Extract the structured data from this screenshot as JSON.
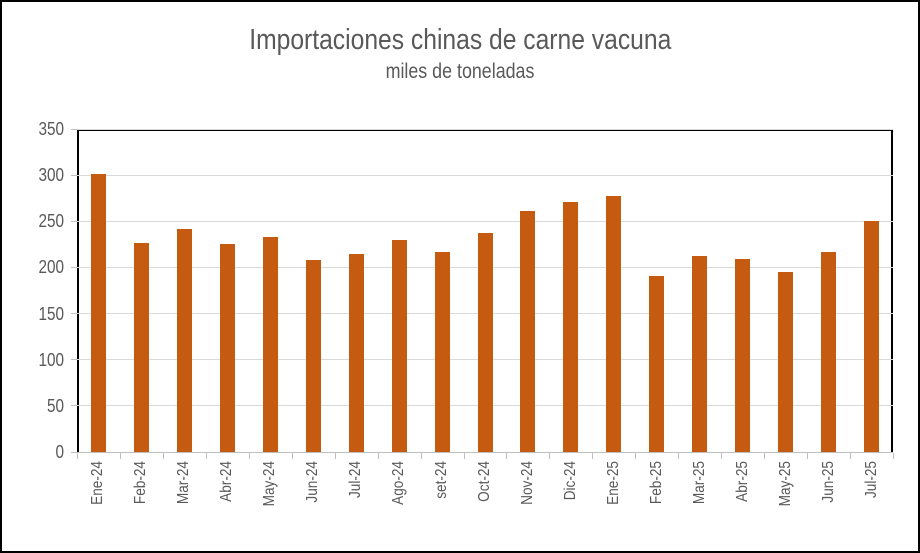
{
  "title": "Importaciones chinas de carne vacuna",
  "subtitle": "miles de toneladas",
  "colors": {
    "bar": "#c55a11",
    "gridline": "#d9d9d9",
    "axis_line": "#bfbfbf",
    "plot_border": "#000000",
    "text": "#595959"
  },
  "chart_data": {
    "type": "bar",
    "title": "Importaciones chinas de carne vacuna",
    "subtitle": "miles de toneladas",
    "xlabel": "",
    "ylabel": "",
    "categories": [
      "Ene-24",
      "Feb-24",
      "Mar-24",
      "Abr-24",
      "May-24",
      "Jun-24",
      "Jul-24",
      "Ago-24",
      "set-24",
      "Oct-24",
      "Nov-24",
      "Dic-24",
      "Ene-25",
      "Feb-25",
      "Mar-25",
      "Abr-25",
      "May-25",
      "Jun-25",
      "Jul-25"
    ],
    "values": [
      301,
      227,
      242,
      225,
      233,
      208,
      215,
      230,
      217,
      237,
      261,
      271,
      277,
      191,
      212,
      209,
      195,
      217,
      250
    ],
    "ylim": [
      0,
      350
    ],
    "yticks": [
      0,
      50,
      100,
      150,
      200,
      250,
      300,
      350
    ],
    "grid": true,
    "legend": false
  }
}
